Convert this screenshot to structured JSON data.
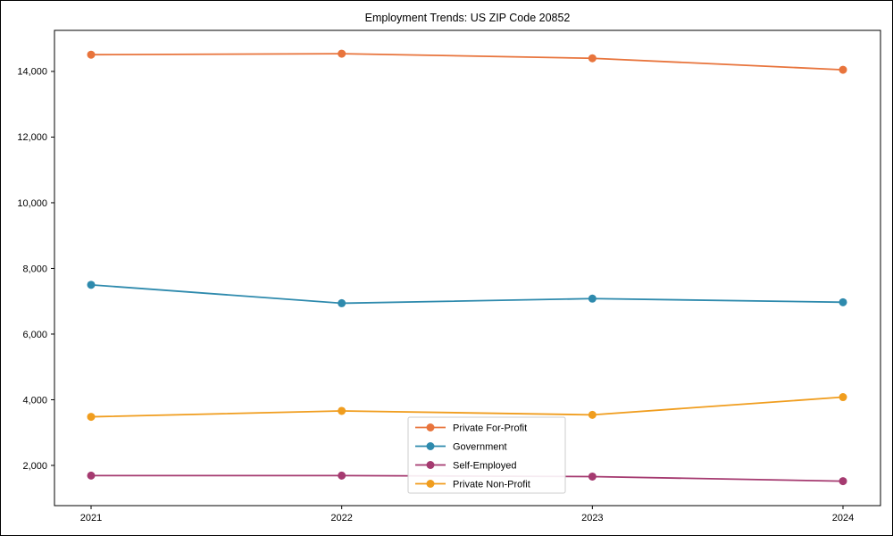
{
  "page": {
    "title": "Employment Trends: US ZIP Code 20852"
  },
  "chart_data": {
    "type": "line",
    "title": "Employment Trends: US ZIP Code 20852",
    "xlabel": "",
    "ylabel": "",
    "x": [
      2021,
      2022,
      2023,
      2024
    ],
    "x_tick_labels": [
      "2021",
      "2022",
      "2023",
      "2024"
    ],
    "y_ticks": [
      2000,
      4000,
      6000,
      8000,
      10000,
      12000,
      14000
    ],
    "y_tick_labels": [
      "2,000",
      "4,000",
      "6,000",
      "8,000",
      "10,000",
      "12,000",
      "14,000"
    ],
    "ylim": [
      775,
      15250
    ],
    "grid": false,
    "legend_position": "lower-center-inside",
    "legend_border_color": "#cccccc",
    "axis_color": "#000000",
    "series": [
      {
        "name": "Private For-Profit",
        "color": "#e8743c",
        "values": [
          14510,
          14540,
          14400,
          14050
        ]
      },
      {
        "name": "Government",
        "color": "#2e8aad",
        "values": [
          7500,
          6940,
          7080,
          6970
        ]
      },
      {
        "name": "Self-Employed",
        "color": "#a53a70",
        "values": [
          1690,
          1690,
          1660,
          1520
        ]
      },
      {
        "name": "Private Non-Profit",
        "color": "#f09d1e",
        "values": [
          3480,
          3660,
          3540,
          4080
        ]
      }
    ]
  }
}
